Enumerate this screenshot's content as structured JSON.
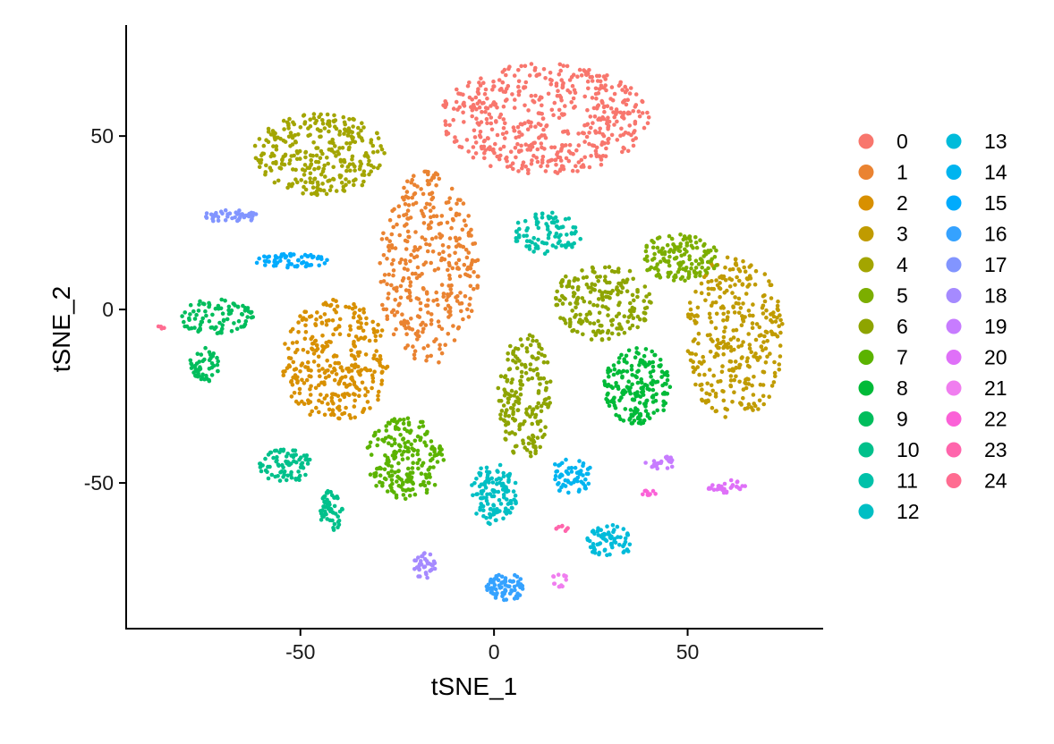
{
  "chart_data": {
    "type": "scatter",
    "title": "",
    "xlabel": "tSNE_1",
    "ylabel": "tSNE_2",
    "xlim": [
      -95,
      85
    ],
    "ylim": [
      -92,
      82
    ],
    "xticks": [
      -50,
      0,
      50
    ],
    "yticks": [
      -50,
      0,
      50
    ],
    "x_tick_labels": [
      "-50",
      "0",
      "50"
    ],
    "y_tick_labels": [
      "-50",
      "0",
      "50"
    ],
    "grid": false,
    "legend_placement": "right",
    "series": [
      {
        "name": "0",
        "color": "#F8766D",
        "clusters": [
          {
            "cx": 13,
            "cy": 55,
            "rx": 27,
            "ry": 16,
            "n": 520
          }
        ]
      },
      {
        "name": "1",
        "color": "#EA8331",
        "clusters": [
          {
            "cx": -17,
            "cy": 12,
            "rx": 13,
            "ry": 28,
            "n": 360
          }
        ]
      },
      {
        "name": "2",
        "color": "#D89000",
        "clusters": [
          {
            "cx": -41,
            "cy": -15,
            "rx": 14,
            "ry": 18,
            "n": 320
          }
        ]
      },
      {
        "name": "3",
        "color": "#C09B00",
        "clusters": [
          {
            "cx": 62,
            "cy": -8,
            "rx": 13,
            "ry": 24,
            "n": 330
          }
        ]
      },
      {
        "name": "4",
        "color": "#A3A500",
        "clusters": [
          {
            "cx": -45,
            "cy": 45,
            "rx": 17,
            "ry": 12,
            "n": 300
          }
        ]
      },
      {
        "name": "5",
        "color": "#7CAE00",
        "clusters": [
          {
            "cx": 48,
            "cy": 15,
            "rx": 10,
            "ry": 7,
            "n": 140
          }
        ]
      },
      {
        "name": "6",
        "color": "#8EA400",
        "clusters": [
          {
            "cx": 28,
            "cy": 2,
            "rx": 13,
            "ry": 11,
            "n": 200
          },
          {
            "cx": 8,
            "cy": -25,
            "rx": 7,
            "ry": 18,
            "n": 190
          }
        ]
      },
      {
        "name": "7",
        "color": "#5BB300",
        "clusters": [
          {
            "cx": -23,
            "cy": -43,
            "rx": 10,
            "ry": 12,
            "n": 210
          }
        ]
      },
      {
        "name": "8",
        "color": "#00BA38",
        "clusters": [
          {
            "cx": 37,
            "cy": -22,
            "rx": 9,
            "ry": 11,
            "n": 200
          }
        ]
      },
      {
        "name": "9",
        "color": "#00BD5C",
        "clusters": [
          {
            "cx": -72,
            "cy": -2,
            "rx": 10,
            "ry": 5,
            "n": 90
          },
          {
            "cx": -75,
            "cy": -16,
            "rx": 4,
            "ry": 5,
            "n": 50
          }
        ]
      },
      {
        "name": "10",
        "color": "#00C08B",
        "clusters": [
          {
            "cx": -54,
            "cy": -45,
            "rx": 7,
            "ry": 5,
            "n": 80
          },
          {
            "cx": -42,
            "cy": -58,
            "rx": 3,
            "ry": 6,
            "n": 55
          }
        ]
      },
      {
        "name": "11",
        "color": "#00C1A9",
        "clusters": [
          {
            "cx": 14,
            "cy": 22,
            "rx": 9,
            "ry": 6,
            "n": 90
          }
        ]
      },
      {
        "name": "12",
        "color": "#00BFC4",
        "clusters": [
          {
            "cx": 0,
            "cy": -53,
            "rx": 6,
            "ry": 9,
            "n": 120
          }
        ]
      },
      {
        "name": "13",
        "color": "#00BBDA",
        "clusters": [
          {
            "cx": 30,
            "cy": -67,
            "rx": 6,
            "ry": 5,
            "n": 70
          }
        ]
      },
      {
        "name": "14",
        "color": "#00B4EF",
        "clusters": [
          {
            "cx": 20,
            "cy": -48,
            "rx": 6,
            "ry": 5,
            "n": 60
          }
        ]
      },
      {
        "name": "15",
        "color": "#00ABFD",
        "clusters": [
          {
            "cx": -52,
            "cy": 14,
            "rx": 10,
            "ry": 2,
            "n": 60
          }
        ]
      },
      {
        "name": "16",
        "color": "#35A2FF",
        "clusters": [
          {
            "cx": 3,
            "cy": -80,
            "rx": 5,
            "ry": 4,
            "n": 70
          }
        ]
      },
      {
        "name": "17",
        "color": "#8295FF",
        "clusters": [
          {
            "cx": -68,
            "cy": 27,
            "rx": 7,
            "ry": 2,
            "n": 45
          }
        ]
      },
      {
        "name": "18",
        "color": "#A58AFF",
        "clusters": [
          {
            "cx": -18,
            "cy": -74,
            "rx": 3,
            "ry": 4,
            "n": 35
          }
        ]
      },
      {
        "name": "19",
        "color": "#C77CFF",
        "clusters": [
          {
            "cx": 43,
            "cy": -44,
            "rx": 4,
            "ry": 2,
            "n": 25
          }
        ]
      },
      {
        "name": "20",
        "color": "#DF70F8",
        "clusters": [
          {
            "cx": 60,
            "cy": -51,
            "rx": 5,
            "ry": 2,
            "n": 30
          }
        ]
      },
      {
        "name": "21",
        "color": "#F07EEF",
        "clusters": [
          {
            "cx": 17,
            "cy": -78,
            "rx": 2,
            "ry": 2,
            "n": 14
          }
        ]
      },
      {
        "name": "22",
        "color": "#FB61D7",
        "clusters": [
          {
            "cx": 40,
            "cy": -53,
            "rx": 2,
            "ry": 1,
            "n": 10
          }
        ]
      },
      {
        "name": "23",
        "color": "#FF65AC",
        "clusters": [
          {
            "cx": 18,
            "cy": -63,
            "rx": 2,
            "ry": 1,
            "n": 8
          }
        ]
      },
      {
        "name": "24",
        "color": "#FF6C91",
        "clusters": [
          {
            "cx": -86,
            "cy": -5,
            "rx": 1,
            "ry": 0.5,
            "n": 4
          }
        ]
      }
    ]
  }
}
